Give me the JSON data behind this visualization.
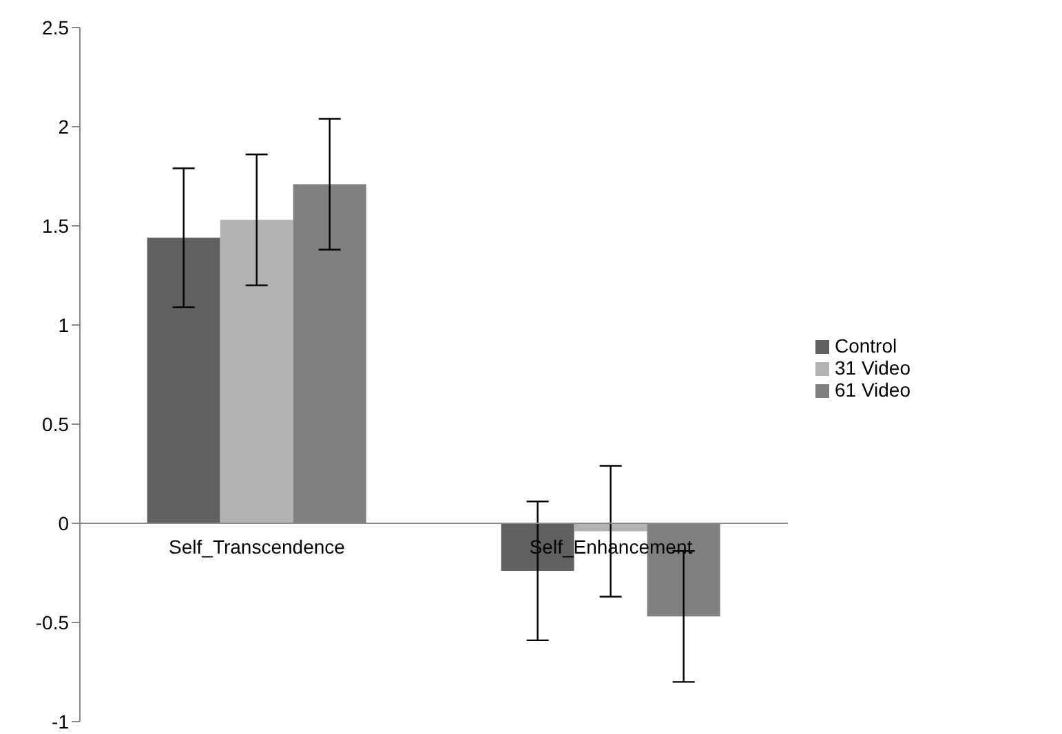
{
  "chart_data": {
    "type": "bar",
    "categories": [
      "Self_Transcendence",
      "Self_Enhancement"
    ],
    "series": [
      {
        "name": "Control",
        "color": "#606060",
        "values": [
          1.44,
          -0.24
        ],
        "errors": [
          0.35,
          0.35
        ]
      },
      {
        "name": "31 Video",
        "color": "#b2b2b2",
        "values": [
          1.53,
          -0.04
        ],
        "errors": [
          0.33,
          0.33
        ]
      },
      {
        "name": "61 Video",
        "color": "#808080",
        "values": [
          1.71,
          -0.47
        ],
        "errors": [
          0.33,
          0.33
        ]
      }
    ],
    "ylim": [
      -1,
      2.5
    ],
    "yticks": [
      -1,
      -0.5,
      0,
      0.5,
      1,
      1.5,
      2,
      2.5
    ],
    "grid": false,
    "legend": "right"
  }
}
